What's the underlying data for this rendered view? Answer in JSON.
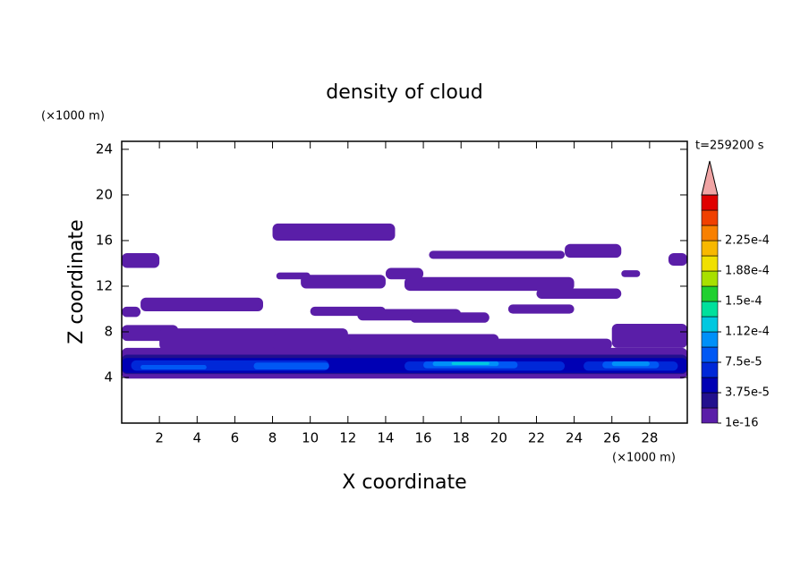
{
  "chart_data": {
    "type": "contour",
    "title": "density of cloud",
    "x_label": "X coordinate",
    "y_label": "Z coordinate",
    "x_unit": "(×1000 m)",
    "y_unit": "(×1000 m)",
    "time_label": "t=259200 s",
    "xlim": [
      0,
      30
    ],
    "ylim": [
      0,
      24.7
    ],
    "xticks": [
      2,
      4,
      6,
      8,
      10,
      12,
      14,
      16,
      18,
      20,
      22,
      24,
      26,
      28
    ],
    "yticks": [
      4,
      8,
      12,
      16,
      20,
      24
    ],
    "colorbar": {
      "levels": [
        1e-16,
        1.875e-05,
        3.75e-05,
        5.625e-05,
        7.5e-05,
        9.375e-05,
        0.0001125,
        0.00013125,
        0.00015,
        0.00016875,
        0.0001875,
        0.00020625,
        0.000225,
        0.00024375
      ],
      "colors": [
        "#5a1ea8",
        "#22108e",
        "#0000b4",
        "#0028d8",
        "#0058f4",
        "#0090f8",
        "#00c8e0",
        "#00e09c",
        "#20d030",
        "#a8e000",
        "#f0e000",
        "#f8b800",
        "#f88000",
        "#f04000",
        "#e00000"
      ],
      "extend_color": "#f0a4a4",
      "ticks": [
        {
          "value": 1e-16,
          "label": "1e-16"
        },
        {
          "value": 3.75e-05,
          "label": "3.75e-5"
        },
        {
          "value": 7.5e-05,
          "label": "7.5e-5"
        },
        {
          "value": 0.0001125,
          "label": "1.12e-4"
        },
        {
          "value": 0.00015,
          "label": "1.5e-4"
        },
        {
          "value": 0.0001875,
          "label": "1.88e-4"
        },
        {
          "value": 0.000225,
          "label": "2.25e-4"
        }
      ]
    },
    "patches": [
      {
        "x": [
          0,
          30
        ],
        "z": [
          3.9,
          6.6
        ],
        "level": 0
      },
      {
        "x": [
          0,
          3
        ],
        "z": [
          7.2,
          8.6
        ],
        "level": 0
      },
      {
        "x": [
          2,
          12
        ],
        "z": [
          6.4,
          8.3
        ],
        "level": 0
      },
      {
        "x": [
          8,
          20
        ],
        "z": [
          6.4,
          7.8
        ],
        "level": 0
      },
      {
        "x": [
          12,
          26
        ],
        "z": [
          6.4,
          7.4
        ],
        "level": 0
      },
      {
        "x": [
          26,
          30
        ],
        "z": [
          6.6,
          8.7
        ],
        "level": 0
      },
      {
        "x": [
          0,
          1
        ],
        "z": [
          9.3,
          10.2
        ],
        "level": 0
      },
      {
        "x": [
          1,
          7.5
        ],
        "z": [
          9.8,
          11.0
        ],
        "level": 0
      },
      {
        "x": [
          10,
          14
        ],
        "z": [
          9.4,
          10.2
        ],
        "level": 0
      },
      {
        "x": [
          12.5,
          18
        ],
        "z": [
          9.0,
          10.0
        ],
        "level": 0
      },
      {
        "x": [
          15.3,
          19.5
        ],
        "z": [
          8.8,
          9.7
        ],
        "level": 0
      },
      {
        "x": [
          20.5,
          24
        ],
        "z": [
          9.6,
          10.4
        ],
        "level": 0
      },
      {
        "x": [
          8.2,
          10
        ],
        "z": [
          12.6,
          13.2
        ],
        "level": 0
      },
      {
        "x": [
          9.5,
          14
        ],
        "z": [
          11.8,
          13.0
        ],
        "level": 0
      },
      {
        "x": [
          14,
          16
        ],
        "z": [
          12.6,
          13.6
        ],
        "level": 0
      },
      {
        "x": [
          15,
          24
        ],
        "z": [
          11.6,
          12.8
        ],
        "level": 0
      },
      {
        "x": [
          22,
          26.5
        ],
        "z": [
          10.9,
          11.8
        ],
        "level": 0
      },
      {
        "x": [
          26.5,
          27.5
        ],
        "z": [
          12.8,
          13.4
        ],
        "level": 0
      },
      {
        "x": [
          0,
          2
        ],
        "z": [
          13.6,
          14.9
        ],
        "level": 0
      },
      {
        "x": [
          8,
          14.5
        ],
        "z": [
          16.0,
          17.5
        ],
        "level": 0
      },
      {
        "x": [
          16.3,
          23.5
        ],
        "z": [
          14.4,
          15.1
        ],
        "level": 0
      },
      {
        "x": [
          23.5,
          26.5
        ],
        "z": [
          14.5,
          15.7
        ],
        "level": 0
      },
      {
        "x": [
          29,
          30
        ],
        "z": [
          13.8,
          14.9
        ],
        "level": 0
      },
      {
        "x": [
          0,
          30
        ],
        "z": [
          4.3,
          6.0
        ],
        "level": 1
      },
      {
        "x": [
          0,
          30
        ],
        "z": [
          4.4,
          5.7
        ],
        "level": 2
      },
      {
        "x": [
          0.5,
          11
        ],
        "z": [
          4.6,
          5.5
        ],
        "level": 3
      },
      {
        "x": [
          15,
          23.5
        ],
        "z": [
          4.6,
          5.4
        ],
        "level": 3
      },
      {
        "x": [
          24.5,
          29.5
        ],
        "z": [
          4.6,
          5.4
        ],
        "level": 3
      },
      {
        "x": [
          1,
          4.5
        ],
        "z": [
          4.7,
          5.1
        ],
        "level": 4
      },
      {
        "x": [
          7,
          11
        ],
        "z": [
          4.7,
          5.3
        ],
        "level": 4
      },
      {
        "x": [
          16,
          21
        ],
        "z": [
          4.8,
          5.4
        ],
        "level": 4
      },
      {
        "x": [
          25.5,
          28.5
        ],
        "z": [
          4.8,
          5.4
        ],
        "level": 4
      },
      {
        "x": [
          16.5,
          20
        ],
        "z": [
          5.0,
          5.4
        ],
        "level": 5
      },
      {
        "x": [
          26,
          28
        ],
        "z": [
          5.0,
          5.4
        ],
        "level": 5
      },
      {
        "x": [
          17.5,
          19.5
        ],
        "z": [
          5.1,
          5.35
        ],
        "level": 6
      }
    ]
  }
}
